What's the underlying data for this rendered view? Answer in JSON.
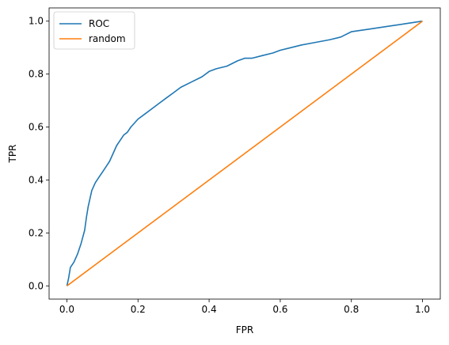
{
  "chart_data": {
    "type": "line",
    "title": "",
    "xlabel": "FPR",
    "ylabel": "TPR",
    "xlim": [
      -0.05,
      1.05
    ],
    "ylim": [
      -0.05,
      1.05
    ],
    "xticks": [
      0.0,
      0.2,
      0.4,
      0.6,
      0.8,
      1.0
    ],
    "yticks": [
      0.0,
      0.2,
      0.4,
      0.6,
      0.8,
      1.0
    ],
    "xtick_labels": [
      "0.0",
      "0.2",
      "0.4",
      "0.6",
      "0.8",
      "1.0"
    ],
    "ytick_labels": [
      "0.0",
      "0.2",
      "0.4",
      "0.6",
      "0.8",
      "1.0"
    ],
    "grid": false,
    "legend_position": "upper-left",
    "series": [
      {
        "name": "ROC",
        "color": "#1f77b4",
        "x": [
          0.0,
          0.005,
          0.01,
          0.02,
          0.03,
          0.04,
          0.05,
          0.055,
          0.06,
          0.07,
          0.08,
          0.09,
          0.1,
          0.11,
          0.12,
          0.13,
          0.14,
          0.15,
          0.16,
          0.17,
          0.18,
          0.2,
          0.22,
          0.24,
          0.26,
          0.28,
          0.3,
          0.32,
          0.35,
          0.38,
          0.4,
          0.42,
          0.45,
          0.48,
          0.5,
          0.52,
          0.55,
          0.58,
          0.6,
          0.63,
          0.66,
          0.7,
          0.74,
          0.77,
          0.8,
          0.85,
          0.9,
          0.95,
          1.0
        ],
        "y": [
          0.0,
          0.03,
          0.07,
          0.09,
          0.12,
          0.16,
          0.21,
          0.26,
          0.3,
          0.36,
          0.39,
          0.41,
          0.43,
          0.45,
          0.47,
          0.5,
          0.53,
          0.55,
          0.57,
          0.58,
          0.6,
          0.63,
          0.65,
          0.67,
          0.69,
          0.71,
          0.73,
          0.75,
          0.77,
          0.79,
          0.81,
          0.82,
          0.83,
          0.85,
          0.86,
          0.86,
          0.87,
          0.88,
          0.89,
          0.9,
          0.91,
          0.92,
          0.93,
          0.94,
          0.96,
          0.97,
          0.98,
          0.99,
          1.0
        ]
      },
      {
        "name": "random",
        "color": "#ff7f0e",
        "x": [
          0.0,
          1.0
        ],
        "y": [
          0.0,
          1.0
        ]
      }
    ]
  }
}
